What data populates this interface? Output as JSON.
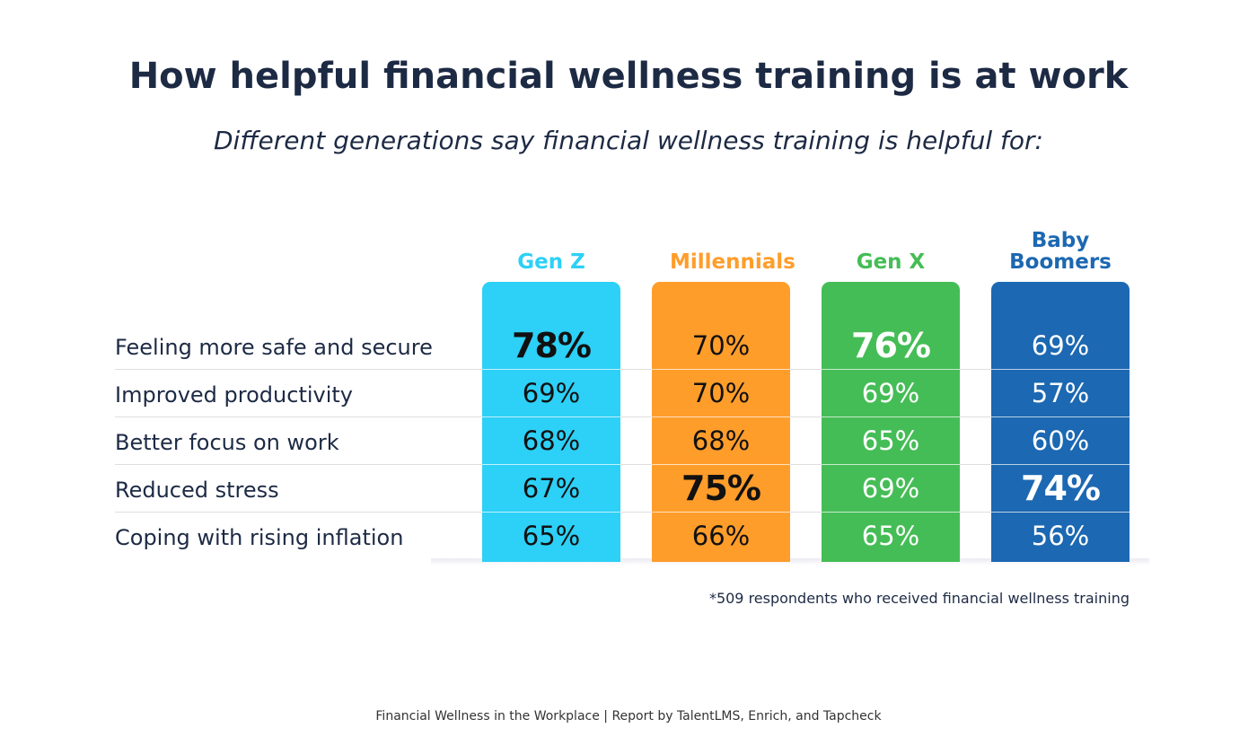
{
  "header": {
    "title": "How helpful financial wellness training is at work",
    "subtitle": "Different generations say financial wellness training is helpful for:"
  },
  "table": {
    "row_labels": [
      "Feeling more safe and secure",
      "Improved productivity",
      "Better focus on work",
      "Reduced stress",
      "Coping with rising inflation"
    ],
    "columns": [
      {
        "name": "Gen Z",
        "color": "#2dd0f6",
        "text_color": "#111111",
        "cells": [
          "78%",
          "69%",
          "68%",
          "67%",
          "65%"
        ],
        "bold": [
          true,
          false,
          false,
          false,
          false
        ]
      },
      {
        "name": "Millennials",
        "color": "#ff9d2b",
        "text_color": "#111111",
        "cells": [
          "70%",
          "70%",
          "68%",
          "75%",
          "66%"
        ],
        "bold": [
          false,
          false,
          false,
          true,
          false
        ]
      },
      {
        "name": "Gen X",
        "color": "#45bd56",
        "text_color": "#ffffff",
        "cells": [
          "76%",
          "69%",
          "65%",
          "69%",
          "65%"
        ],
        "bold": [
          true,
          false,
          false,
          false,
          false
        ]
      },
      {
        "name": "Baby Boomers",
        "color": "#1c68b2",
        "text_color": "#ffffff",
        "cells": [
          "69%",
          "57%",
          "60%",
          "74%",
          "56%"
        ],
        "bold": [
          false,
          false,
          false,
          true,
          false
        ]
      }
    ]
  },
  "footnote": "*509 respondents who received financial wellness training",
  "source": "Financial Wellness in the Workplace | Report by TalentLMS, Enrich, and Tapcheck"
}
